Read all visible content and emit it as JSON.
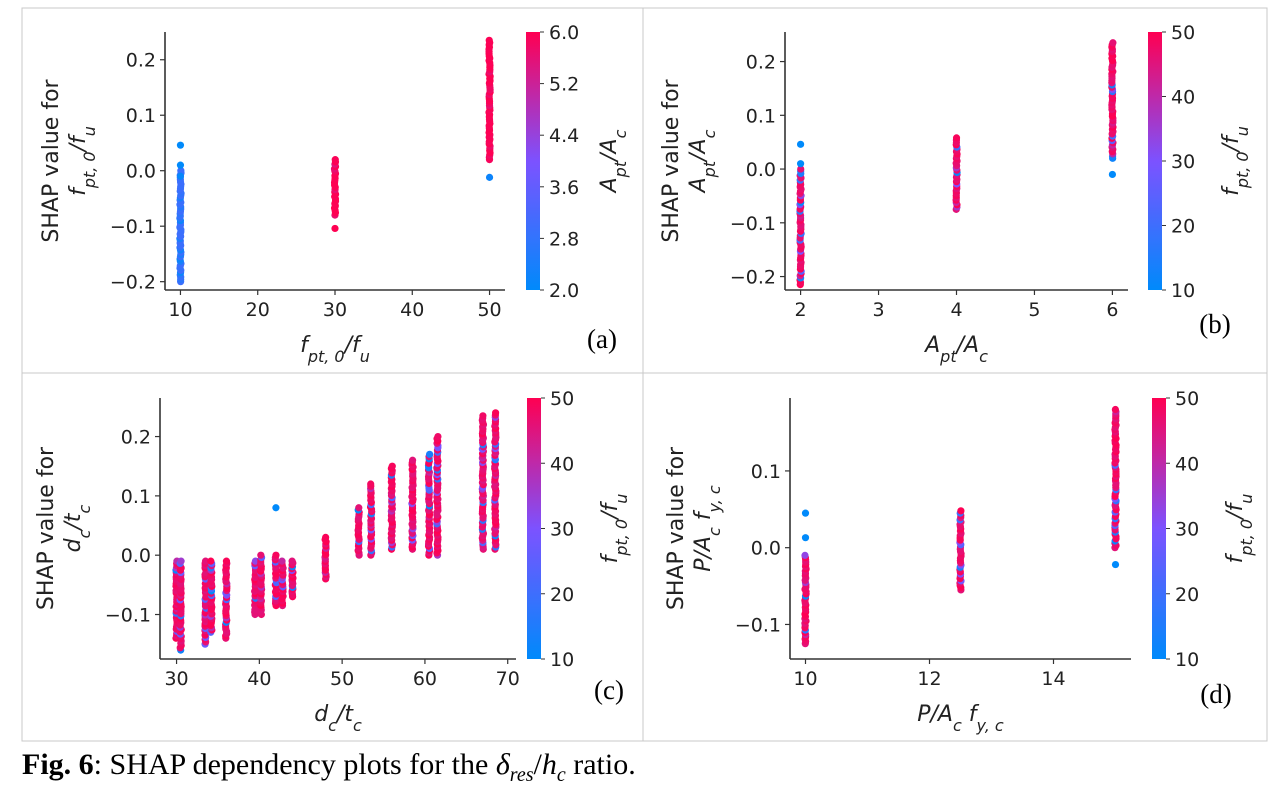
{
  "figure": {
    "caption": {
      "label": "Fig. 6",
      "text_before": ": SHAP dependency plots for the ",
      "symbol": "δ",
      "symbol_sub": "res",
      "divider": "/",
      "symbol2": "h",
      "symbol2_sub": "c",
      "text_after": " ratio."
    }
  },
  "colors": {
    "low": "#008afb",
    "mid": "#7c52ff",
    "high": "#ff0052",
    "axis": "#333333",
    "frame": "#c8c8c8"
  },
  "chart_data": [
    {
      "id": "a",
      "type": "scatter",
      "panel_label": "(a)",
      "ylabel_lines": [
        "SHAP value for",
        "f_{pt, 0}/f_u"
      ],
      "xlabel": "f_{pt, 0}/f_u",
      "colorbar_label": "A_{pt}/A_c",
      "colorbar_range": [
        2.0,
        6.0
      ],
      "colorbar_ticks": [
        "2.0",
        "2.8",
        "3.6",
        "4.4",
        "5.2",
        "6.0"
      ],
      "xlim": [
        8,
        52
      ],
      "ylim": [
        -0.215,
        0.25
      ],
      "xticks": [
        10,
        20,
        30,
        40,
        50
      ],
      "xtick_labels": [
        "10",
        "20",
        "30",
        "40",
        "50"
      ],
      "yticks": [
        -0.2,
        -0.1,
        0.0,
        0.1,
        0.2
      ],
      "ytick_labels": [
        "−0.2",
        "−0.1",
        "0.0",
        "0.1",
        "0.2"
      ],
      "clusters": [
        {
          "x": 10,
          "y_min": -0.2,
          "y_max": 0.0,
          "color_min": 2.0,
          "color_max": 3.0,
          "outliers": [
            [
              0.046,
              2.0
            ],
            [
              0.01,
              2.0
            ],
            [
              -0.01,
              2.1
            ]
          ]
        },
        {
          "x": 30,
          "y_min": -0.08,
          "y_max": 0.02,
          "color_min": 5.5,
          "color_max": 6.0,
          "outliers": [
            [
              -0.104,
              6.0
            ]
          ]
        },
        {
          "x": 50,
          "y_min": 0.02,
          "y_max": 0.235,
          "color_min": 5.4,
          "color_max": 6.0,
          "outliers": [
            [
              -0.012,
              2.2
            ]
          ]
        }
      ]
    },
    {
      "id": "b",
      "type": "scatter",
      "panel_label": "(b)",
      "ylabel_lines": [
        "SHAP value for",
        "A_{pt}/A_c"
      ],
      "xlabel": "A_{pt}/A_c",
      "colorbar_label": "f_{pt, 0}/f_u",
      "colorbar_range": [
        10,
        50
      ],
      "colorbar_ticks": [
        "10",
        "20",
        "30",
        "40",
        "50"
      ],
      "xlim": [
        1.8,
        6.2
      ],
      "ylim": [
        -0.225,
        0.255
      ],
      "xticks": [
        2,
        3,
        4,
        5,
        6
      ],
      "xtick_labels": [
        "2",
        "3",
        "4",
        "5",
        "6"
      ],
      "yticks": [
        -0.2,
        -0.1,
        0.0,
        0.1,
        0.2
      ],
      "ytick_labels": [
        "−0.2",
        "−0.1",
        "0.0",
        "0.1",
        "0.2"
      ],
      "clusters": [
        {
          "x": 2,
          "y_min": -0.215,
          "y_max": 0.0,
          "color_min": 10,
          "color_max": 50,
          "outliers": [
            [
              0.046,
              10
            ],
            [
              0.01,
              10
            ]
          ]
        },
        {
          "x": 4,
          "y_min": -0.075,
          "y_max": 0.058,
          "color_min": 10,
          "color_max": 50,
          "outliers": []
        },
        {
          "x": 6,
          "y_min": 0.02,
          "y_max": 0.235,
          "color_min": 10,
          "color_max": 50,
          "outliers": [
            [
              -0.01,
              10
            ]
          ]
        }
      ]
    },
    {
      "id": "c",
      "type": "scatter",
      "panel_label": "(c)",
      "ylabel_lines": [
        "SHAP value for",
        "d_c/t_c"
      ],
      "xlabel": "d_c/t_c",
      "colorbar_label": "f_{pt, 0}/f_u",
      "colorbar_range": [
        10,
        50
      ],
      "colorbar_ticks": [
        "10",
        "20",
        "30",
        "40",
        "50"
      ],
      "xlim": [
        28,
        71
      ],
      "ylim": [
        -0.175,
        0.265
      ],
      "xticks": [
        30,
        40,
        50,
        60,
        70
      ],
      "xtick_labels": [
        "30",
        "40",
        "50",
        "60",
        "70"
      ],
      "yticks": [
        -0.1,
        0.0,
        0.1,
        0.2
      ],
      "ytick_labels": [
        "−0.1",
        "0.0",
        "0.1",
        "0.2"
      ],
      "clusters": [
        {
          "x": 30,
          "y_min": -0.14,
          "y_max": -0.01,
          "color_min": 10,
          "color_max": 50,
          "outliers": []
        },
        {
          "x": 30.5,
          "y_min": -0.16,
          "y_max": -0.01,
          "color_min": 10,
          "color_max": 50,
          "outliers": []
        },
        {
          "x": 33.5,
          "y_min": -0.15,
          "y_max": -0.01,
          "color_min": 10,
          "color_max": 50,
          "outliers": []
        },
        {
          "x": 34.2,
          "y_min": -0.13,
          "y_max": -0.01,
          "color_min": 10,
          "color_max": 50,
          "outliers": []
        },
        {
          "x": 36,
          "y_min": -0.14,
          "y_max": -0.01,
          "color_min": 10,
          "color_max": 50,
          "outliers": []
        },
        {
          "x": 39.5,
          "y_min": -0.1,
          "y_max": -0.01,
          "color_min": 10,
          "color_max": 50,
          "outliers": []
        },
        {
          "x": 40.2,
          "y_min": -0.1,
          "y_max": 0.0,
          "color_min": 10,
          "color_max": 50,
          "outliers": []
        },
        {
          "x": 42,
          "y_min": -0.085,
          "y_max": 0.0,
          "color_min": 10,
          "color_max": 50,
          "outliers": [
            [
              0.08,
              10
            ]
          ]
        },
        {
          "x": 42.8,
          "y_min": -0.085,
          "y_max": -0.01,
          "color_min": 10,
          "color_max": 50,
          "outliers": []
        },
        {
          "x": 44,
          "y_min": -0.07,
          "y_max": -0.01,
          "color_min": 10,
          "color_max": 50,
          "outliers": []
        },
        {
          "x": 48,
          "y_min": -0.04,
          "y_max": 0.03,
          "color_min": 40,
          "color_max": 50,
          "outliers": []
        },
        {
          "x": 52,
          "y_min": 0.0,
          "y_max": 0.08,
          "color_min": 10,
          "color_max": 50,
          "outliers": []
        },
        {
          "x": 53.5,
          "y_min": 0.0,
          "y_max": 0.12,
          "color_min": 10,
          "color_max": 50,
          "outliers": []
        },
        {
          "x": 56,
          "y_min": 0.01,
          "y_max": 0.15,
          "color_min": 10,
          "color_max": 50,
          "outliers": []
        },
        {
          "x": 58.5,
          "y_min": 0.01,
          "y_max": 0.16,
          "color_min": 10,
          "color_max": 50,
          "outliers": []
        },
        {
          "x": 60.5,
          "y_min": 0.0,
          "y_max": 0.17,
          "color_min": 10,
          "color_max": 50,
          "outliers": []
        },
        {
          "x": 61.5,
          "y_min": 0.0,
          "y_max": 0.2,
          "color_min": 10,
          "color_max": 50,
          "outliers": []
        },
        {
          "x": 67,
          "y_min": 0.01,
          "y_max": 0.235,
          "color_min": 10,
          "color_max": 50,
          "outliers": []
        },
        {
          "x": 68.5,
          "y_min": 0.01,
          "y_max": 0.24,
          "color_min": 10,
          "color_max": 50,
          "outliers": []
        }
      ]
    },
    {
      "id": "d",
      "type": "scatter",
      "panel_label": "(d)",
      "ylabel_lines": [
        "SHAP value for",
        "P/A_c f_{y, c}"
      ],
      "xlabel": "P/A_c f_{y, c}",
      "colorbar_label": "f_{pt, 0}/f_u",
      "colorbar_range": [
        10,
        50
      ],
      "colorbar_ticks": [
        "10",
        "20",
        "30",
        "40",
        "50"
      ],
      "xlim": [
        9.75,
        15.25
      ],
      "ylim": [
        -0.145,
        0.195
      ],
      "xticks": [
        10,
        12,
        14
      ],
      "xtick_labels": [
        "10",
        "12",
        "14"
      ],
      "yticks": [
        -0.1,
        0.0,
        0.1
      ],
      "ytick_labels": [
        "−0.1",
        "0.0",
        "0.1"
      ],
      "clusters": [
        {
          "x": 10,
          "y_min": -0.125,
          "y_max": -0.01,
          "color_min": 10,
          "color_max": 50,
          "outliers": [
            [
              0.045,
              10
            ],
            [
              0.013,
              10
            ]
          ]
        },
        {
          "x": 12.5,
          "y_min": -0.055,
          "y_max": 0.048,
          "color_min": 10,
          "color_max": 50,
          "outliers": []
        },
        {
          "x": 15,
          "y_min": 0.0,
          "y_max": 0.18,
          "color_min": 10,
          "color_max": 50,
          "outliers": [
            [
              -0.022,
              10
            ]
          ]
        }
      ]
    }
  ]
}
